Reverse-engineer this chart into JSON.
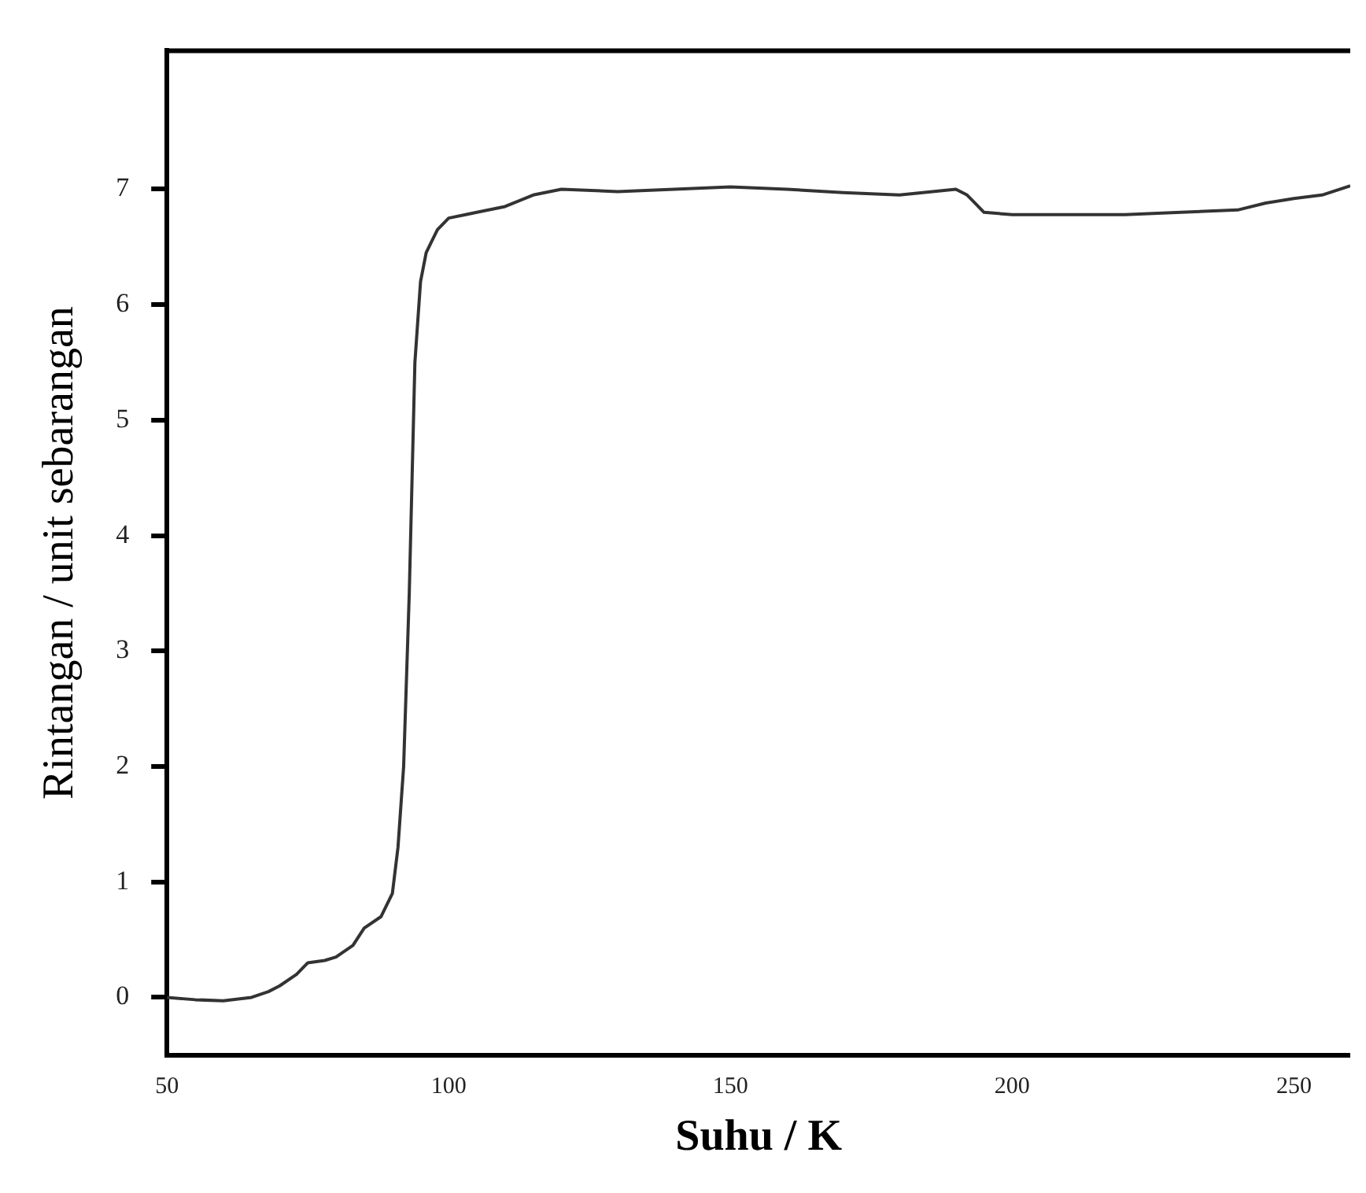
{
  "chart_data": {
    "type": "line",
    "xlabel": "Suhu / K",
    "ylabel": "Rintangan / unit sebarangan",
    "x": [
      50,
      55,
      60,
      65,
      68,
      70,
      73,
      75,
      78,
      80,
      83,
      85,
      88,
      90,
      91,
      92,
      93,
      94,
      95,
      96,
      97,
      98,
      100,
      103,
      105,
      110,
      115,
      120,
      130,
      140,
      150,
      160,
      170,
      180,
      190,
      192,
      195,
      200,
      210,
      220,
      230,
      240,
      245,
      250,
      255,
      260
    ],
    "series": [
      {
        "color": "#333333",
        "values": [
          0,
          -0.02,
          -0.03,
          0,
          0.05,
          0.1,
          0.2,
          0.3,
          0.32,
          0.35,
          0.45,
          0.6,
          0.7,
          0.9,
          1.3,
          2.0,
          3.5,
          5.5,
          6.2,
          6.45,
          6.55,
          6.65,
          6.75,
          6.78,
          6.8,
          6.85,
          6.95,
          7,
          6.98,
          7,
          7.02,
          7,
          6.97,
          6.95,
          7,
          6.95,
          6.8,
          6.78,
          6.78,
          6.78,
          6.8,
          6.82,
          6.88,
          6.92,
          6.95,
          7.03
        ]
      }
    ],
    "xlim": [
      50,
      260
    ],
    "xticks": [
      50,
      100,
      150,
      200,
      250
    ],
    "ylim": [
      -0.5,
      8.2
    ],
    "yticks": [
      0,
      1,
      2,
      3,
      4,
      5,
      6,
      7
    ],
    "grid": false,
    "legend": false,
    "marker": "none",
    "line_style": "solid"
  }
}
